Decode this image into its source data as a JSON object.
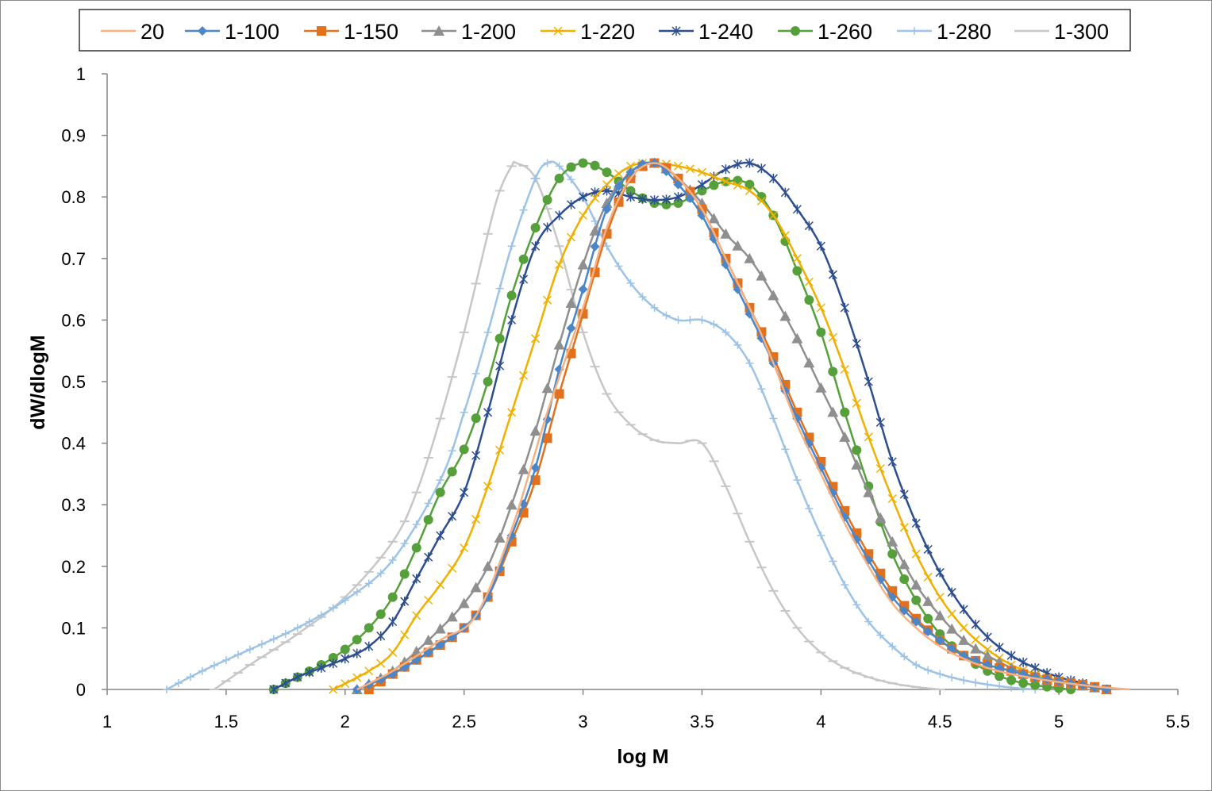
{
  "chart_data": {
    "type": "line",
    "title": "",
    "xlabel": "log M",
    "ylabel": "dW/dlogM",
    "xlim": [
      1,
      5.5
    ],
    "ylim": [
      0,
      1
    ],
    "xticks": [
      1,
      1.5,
      2,
      2.5,
      3,
      3.5,
      4,
      4.5,
      5,
      5.5
    ],
    "xtick_labels": [
      "1",
      "1.5",
      "2",
      "2.5",
      "3",
      "3.5",
      "4",
      "4.5",
      "5",
      "5.5"
    ],
    "yticks": [
      0,
      0.1,
      0.2,
      0.3,
      0.4,
      0.5,
      0.6,
      0.7,
      0.8,
      0.9,
      1
    ],
    "ytick_labels": [
      "0",
      "0.1",
      "0.2",
      "0.3",
      "0.4",
      "0.5",
      "0.6",
      "0.7",
      "0.8",
      "0.9",
      "1"
    ],
    "grid": false,
    "legend_position": "top",
    "series": [
      {
        "name": "20",
        "color": "#f4b183",
        "marker": "none",
        "points": [
          [
            2.05,
            0
          ],
          [
            2.2,
            0.03
          ],
          [
            2.4,
            0.08
          ],
          [
            2.55,
            0.12
          ],
          [
            2.7,
            0.26
          ],
          [
            2.85,
            0.45
          ],
          [
            3.0,
            0.62
          ],
          [
            3.1,
            0.75
          ],
          [
            3.2,
            0.83
          ],
          [
            3.3,
            0.855
          ],
          [
            3.4,
            0.83
          ],
          [
            3.5,
            0.78
          ],
          [
            3.6,
            0.7
          ],
          [
            3.7,
            0.62
          ],
          [
            3.8,
            0.53
          ],
          [
            3.9,
            0.43
          ],
          [
            4.0,
            0.35
          ],
          [
            4.1,
            0.27
          ],
          [
            4.2,
            0.2
          ],
          [
            4.3,
            0.14
          ],
          [
            4.4,
            0.1
          ],
          [
            4.5,
            0.07
          ],
          [
            4.6,
            0.05
          ],
          [
            4.7,
            0.035
          ],
          [
            4.8,
            0.025
          ],
          [
            4.9,
            0.018
          ],
          [
            5.0,
            0.012
          ],
          [
            5.1,
            0.007
          ],
          [
            5.2,
            0.003
          ],
          [
            5.3,
            0
          ]
        ]
      },
      {
        "name": "1-100",
        "color": "#4a86c8",
        "marker": "diamond",
        "points": [
          [
            2.05,
            0
          ],
          [
            2.2,
            0.025
          ],
          [
            2.35,
            0.06
          ],
          [
            2.5,
            0.1
          ],
          [
            2.6,
            0.15
          ],
          [
            2.7,
            0.25
          ],
          [
            2.8,
            0.36
          ],
          [
            2.9,
            0.52
          ],
          [
            3.0,
            0.65
          ],
          [
            3.1,
            0.78
          ],
          [
            3.2,
            0.84
          ],
          [
            3.3,
            0.855
          ],
          [
            3.4,
            0.82
          ],
          [
            3.5,
            0.77
          ],
          [
            3.6,
            0.69
          ],
          [
            3.7,
            0.61
          ],
          [
            3.8,
            0.53
          ],
          [
            3.9,
            0.44
          ],
          [
            4.0,
            0.36
          ],
          [
            4.1,
            0.28
          ],
          [
            4.2,
            0.21
          ],
          [
            4.3,
            0.15
          ],
          [
            4.4,
            0.11
          ],
          [
            4.5,
            0.08
          ],
          [
            4.6,
            0.055
          ],
          [
            4.7,
            0.04
          ],
          [
            4.8,
            0.03
          ],
          [
            4.9,
            0.02
          ],
          [
            5.0,
            0.013
          ],
          [
            5.1,
            0.007
          ],
          [
            5.2,
            0
          ]
        ]
      },
      {
        "name": "1-150",
        "color": "#e2711d",
        "marker": "square",
        "points": [
          [
            2.1,
            0
          ],
          [
            2.2,
            0.025
          ],
          [
            2.35,
            0.06
          ],
          [
            2.5,
            0.1
          ],
          [
            2.6,
            0.15
          ],
          [
            2.7,
            0.24
          ],
          [
            2.8,
            0.34
          ],
          [
            2.9,
            0.48
          ],
          [
            3.0,
            0.61
          ],
          [
            3.1,
            0.74
          ],
          [
            3.2,
            0.83
          ],
          [
            3.3,
            0.855
          ],
          [
            3.4,
            0.83
          ],
          [
            3.5,
            0.78
          ],
          [
            3.6,
            0.7
          ],
          [
            3.7,
            0.62
          ],
          [
            3.8,
            0.54
          ],
          [
            3.9,
            0.45
          ],
          [
            4.0,
            0.37
          ],
          [
            4.1,
            0.29
          ],
          [
            4.2,
            0.22
          ],
          [
            4.3,
            0.16
          ],
          [
            4.4,
            0.115
          ],
          [
            4.5,
            0.08
          ],
          [
            4.6,
            0.055
          ],
          [
            4.7,
            0.04
          ],
          [
            4.8,
            0.03
          ],
          [
            4.9,
            0.02
          ],
          [
            5.0,
            0.013
          ],
          [
            5.1,
            0.008
          ],
          [
            5.2,
            0
          ]
        ]
      },
      {
        "name": "1-200",
        "color": "#8f8f8f",
        "marker": "triangle",
        "points": [
          [
            2.05,
            0
          ],
          [
            2.2,
            0.03
          ],
          [
            2.35,
            0.08
          ],
          [
            2.5,
            0.14
          ],
          [
            2.6,
            0.2
          ],
          [
            2.7,
            0.3
          ],
          [
            2.8,
            0.42
          ],
          [
            2.9,
            0.56
          ],
          [
            3.0,
            0.69
          ],
          [
            3.1,
            0.79
          ],
          [
            3.2,
            0.84
          ],
          [
            3.3,
            0.855
          ],
          [
            3.4,
            0.83
          ],
          [
            3.5,
            0.79
          ],
          [
            3.6,
            0.74
          ],
          [
            3.7,
            0.7
          ],
          [
            3.8,
            0.64
          ],
          [
            3.9,
            0.57
          ],
          [
            4.0,
            0.49
          ],
          [
            4.1,
            0.41
          ],
          [
            4.2,
            0.32
          ],
          [
            4.3,
            0.24
          ],
          [
            4.4,
            0.17
          ],
          [
            4.5,
            0.12
          ],
          [
            4.6,
            0.08
          ],
          [
            4.7,
            0.055
          ],
          [
            4.8,
            0.035
          ],
          [
            4.9,
            0.02
          ],
          [
            5.0,
            0.012
          ],
          [
            5.1,
            0.006
          ],
          [
            5.2,
            0
          ]
        ]
      },
      {
        "name": "1-220",
        "color": "#f0b000",
        "marker": "x",
        "points": [
          [
            1.95,
            0
          ],
          [
            2.1,
            0.03
          ],
          [
            2.2,
            0.06
          ],
          [
            2.3,
            0.12
          ],
          [
            2.4,
            0.17
          ],
          [
            2.5,
            0.23
          ],
          [
            2.6,
            0.33
          ],
          [
            2.7,
            0.45
          ],
          [
            2.8,
            0.57
          ],
          [
            2.9,
            0.69
          ],
          [
            3.0,
            0.77
          ],
          [
            3.1,
            0.82
          ],
          [
            3.2,
            0.85
          ],
          [
            3.3,
            0.855
          ],
          [
            3.4,
            0.85
          ],
          [
            3.5,
            0.84
          ],
          [
            3.6,
            0.825
          ],
          [
            3.7,
            0.81
          ],
          [
            3.8,
            0.77
          ],
          [
            3.9,
            0.7
          ],
          [
            4.0,
            0.62
          ],
          [
            4.1,
            0.52
          ],
          [
            4.2,
            0.41
          ],
          [
            4.3,
            0.31
          ],
          [
            4.4,
            0.22
          ],
          [
            4.5,
            0.15
          ],
          [
            4.6,
            0.1
          ],
          [
            4.7,
            0.065
          ],
          [
            4.8,
            0.04
          ],
          [
            4.9,
            0.025
          ],
          [
            5.0,
            0.015
          ],
          [
            5.1,
            0.008
          ],
          [
            5.2,
            0
          ]
        ]
      },
      {
        "name": "1-240",
        "color": "#2e4f8f",
        "marker": "star",
        "points": [
          [
            1.7,
            0
          ],
          [
            1.8,
            0.02
          ],
          [
            1.9,
            0.035
          ],
          [
            2.0,
            0.05
          ],
          [
            2.1,
            0.07
          ],
          [
            2.2,
            0.11
          ],
          [
            2.3,
            0.18
          ],
          [
            2.4,
            0.25
          ],
          [
            2.5,
            0.32
          ],
          [
            2.6,
            0.45
          ],
          [
            2.7,
            0.6
          ],
          [
            2.8,
            0.72
          ],
          [
            2.9,
            0.77
          ],
          [
            3.0,
            0.8
          ],
          [
            3.1,
            0.81
          ],
          [
            3.2,
            0.8
          ],
          [
            3.3,
            0.795
          ],
          [
            3.4,
            0.8
          ],
          [
            3.5,
            0.82
          ],
          [
            3.6,
            0.845
          ],
          [
            3.7,
            0.855
          ],
          [
            3.8,
            0.83
          ],
          [
            3.9,
            0.78
          ],
          [
            4.0,
            0.72
          ],
          [
            4.1,
            0.62
          ],
          [
            4.2,
            0.5
          ],
          [
            4.3,
            0.37
          ],
          [
            4.4,
            0.27
          ],
          [
            4.5,
            0.19
          ],
          [
            4.6,
            0.13
          ],
          [
            4.7,
            0.085
          ],
          [
            4.8,
            0.055
          ],
          [
            4.9,
            0.035
          ],
          [
            5.0,
            0.02
          ],
          [
            5.1,
            0.01
          ],
          [
            5.17,
            0
          ]
        ]
      },
      {
        "name": "1-260",
        "color": "#55a03a",
        "marker": "circle",
        "points": [
          [
            1.7,
            0
          ],
          [
            1.8,
            0.02
          ],
          [
            1.9,
            0.04
          ],
          [
            2.0,
            0.065
          ],
          [
            2.1,
            0.1
          ],
          [
            2.2,
            0.15
          ],
          [
            2.3,
            0.23
          ],
          [
            2.4,
            0.32
          ],
          [
            2.5,
            0.39
          ],
          [
            2.6,
            0.5
          ],
          [
            2.7,
            0.64
          ],
          [
            2.8,
            0.75
          ],
          [
            2.9,
            0.83
          ],
          [
            3.0,
            0.855
          ],
          [
            3.1,
            0.84
          ],
          [
            3.2,
            0.81
          ],
          [
            3.3,
            0.79
          ],
          [
            3.4,
            0.79
          ],
          [
            3.5,
            0.81
          ],
          [
            3.6,
            0.825
          ],
          [
            3.7,
            0.82
          ],
          [
            3.8,
            0.77
          ],
          [
            3.9,
            0.68
          ],
          [
            4.0,
            0.58
          ],
          [
            4.1,
            0.45
          ],
          [
            4.2,
            0.33
          ],
          [
            4.3,
            0.22
          ],
          [
            4.4,
            0.145
          ],
          [
            4.5,
            0.09
          ],
          [
            4.6,
            0.055
          ],
          [
            4.7,
            0.03
          ],
          [
            4.8,
            0.015
          ],
          [
            4.9,
            0.007
          ],
          [
            5.0,
            0.002
          ],
          [
            5.05,
            0
          ]
        ]
      },
      {
        "name": "1-280",
        "color": "#9dc3e6",
        "marker": "plus",
        "points": [
          [
            1.25,
            0
          ],
          [
            1.4,
            0.03
          ],
          [
            1.6,
            0.065
          ],
          [
            1.8,
            0.1
          ],
          [
            2.0,
            0.145
          ],
          [
            2.2,
            0.21
          ],
          [
            2.4,
            0.34
          ],
          [
            2.5,
            0.45
          ],
          [
            2.6,
            0.58
          ],
          [
            2.7,
            0.72
          ],
          [
            2.8,
            0.83
          ],
          [
            2.85,
            0.855
          ],
          [
            2.9,
            0.85
          ],
          [
            3.0,
            0.8
          ],
          [
            3.1,
            0.72
          ],
          [
            3.2,
            0.66
          ],
          [
            3.3,
            0.62
          ],
          [
            3.4,
            0.6
          ],
          [
            3.5,
            0.6
          ],
          [
            3.6,
            0.58
          ],
          [
            3.7,
            0.53
          ],
          [
            3.8,
            0.44
          ],
          [
            3.9,
            0.34
          ],
          [
            4.0,
            0.25
          ],
          [
            4.1,
            0.17
          ],
          [
            4.2,
            0.11
          ],
          [
            4.3,
            0.07
          ],
          [
            4.4,
            0.04
          ],
          [
            4.5,
            0.025
          ],
          [
            4.6,
            0.015
          ],
          [
            4.7,
            0.008
          ],
          [
            4.8,
            0.003
          ],
          [
            4.9,
            0
          ]
        ]
      },
      {
        "name": "1-300",
        "color": "#c7c7c7",
        "marker": "hline",
        "points": [
          [
            1.45,
            0
          ],
          [
            1.6,
            0.04
          ],
          [
            1.8,
            0.09
          ],
          [
            2.0,
            0.15
          ],
          [
            2.2,
            0.24
          ],
          [
            2.3,
            0.32
          ],
          [
            2.4,
            0.44
          ],
          [
            2.5,
            0.58
          ],
          [
            2.6,
            0.74
          ],
          [
            2.65,
            0.81
          ],
          [
            2.7,
            0.85
          ],
          [
            2.72,
            0.855
          ],
          [
            2.8,
            0.83
          ],
          [
            2.9,
            0.72
          ],
          [
            3.0,
            0.58
          ],
          [
            3.1,
            0.48
          ],
          [
            3.2,
            0.43
          ],
          [
            3.3,
            0.405
          ],
          [
            3.4,
            0.4
          ],
          [
            3.5,
            0.4
          ],
          [
            3.6,
            0.33
          ],
          [
            3.7,
            0.24
          ],
          [
            3.8,
            0.16
          ],
          [
            3.9,
            0.1
          ],
          [
            4.0,
            0.06
          ],
          [
            4.1,
            0.035
          ],
          [
            4.2,
            0.02
          ],
          [
            4.3,
            0.01
          ],
          [
            4.4,
            0.004
          ],
          [
            4.5,
            0
          ]
        ]
      }
    ]
  }
}
